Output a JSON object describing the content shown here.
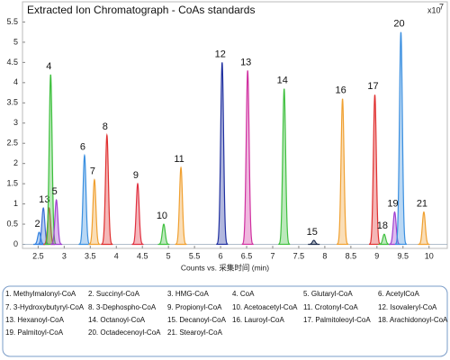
{
  "chart_data": {
    "type": "chromatogram",
    "title": "Extracted Ion Chromatograph - CoAs standards",
    "x_label": "Counts vs. 采集时间 (min)",
    "y_multiplier": {
      "base": "x10",
      "exponent": "7"
    },
    "xlim": [
      2.2,
      10.35
    ],
    "ylim": [
      -0.1,
      6
    ],
    "xticks": [
      2.5,
      3,
      3.5,
      4,
      4.5,
      5,
      5.5,
      6,
      6.5,
      7,
      7.5,
      8,
      8.5,
      9,
      9.5,
      10
    ],
    "yticks": [
      0,
      0.5,
      1,
      1.5,
      2,
      2.5,
      3,
      3.5,
      4,
      4.5,
      5,
      5.5
    ],
    "peaks": [
      {
        "label": "1",
        "legend": "1. Methylmalonyl-CoA",
        "rt": 2.6,
        "height": 0.9,
        "color": "#3a6fd8"
      },
      {
        "label": "2",
        "legend": "2. Succinyl-CoA",
        "rt": 2.52,
        "height": 0.3,
        "color": "#2f7fe0"
      },
      {
        "label": "3",
        "legend": "3. HMG-CoA",
        "rt": 2.71,
        "height": 0.9,
        "color": "#d04040"
      },
      {
        "label": "4",
        "legend": "4. CoA",
        "rt": 2.74,
        "height": 4.2,
        "color": "#3cbf3c"
      },
      {
        "label": "5",
        "legend": "5. Glutaryl-CoA",
        "rt": 2.85,
        "height": 1.1,
        "color": "#a040d0"
      },
      {
        "label": "6",
        "legend": "6. AcetylCoA",
        "rt": 3.39,
        "height": 2.2,
        "color": "#3a8fe0"
      },
      {
        "label": "7",
        "legend": "7. 3-Hydroxybutyryl-CoA",
        "rt": 3.58,
        "height": 1.6,
        "color": "#f0a030"
      },
      {
        "label": "8",
        "legend": "8. 3-Dephospho-CoA",
        "rt": 3.82,
        "height": 2.7,
        "color": "#e03030"
      },
      {
        "label": "9",
        "legend": "9. Propionyl-CoA",
        "rt": 4.41,
        "height": 1.5,
        "color": "#e03040"
      },
      {
        "label": "10",
        "legend": "10. Acetoacetyl-CoA",
        "rt": 4.91,
        "height": 0.5,
        "color": "#40c040"
      },
      {
        "label": "11",
        "legend": "11. Crotonyl-CoA",
        "rt": 5.24,
        "height": 1.9,
        "color": "#f0a030"
      },
      {
        "label": "12",
        "legend": "12. Isovaleryl-CoA",
        "rt": 6.03,
        "height": 4.5,
        "color": "#2030a0"
      },
      {
        "label": "13",
        "legend": "13. Hexanoyl-CoA",
        "rt": 6.52,
        "height": 4.3,
        "color": "#d030a0"
      },
      {
        "label": "14",
        "legend": "14. Octanoyl-CoA",
        "rt": 7.22,
        "height": 3.85,
        "color": "#40c040"
      },
      {
        "label": "15",
        "legend": "15. Decanoyl-CoA",
        "rt": 7.79,
        "height": 0.1,
        "color": "#203050"
      },
      {
        "label": "16",
        "legend": "16. Lauroyl-CoA",
        "rt": 8.34,
        "height": 3.6,
        "color": "#f0a030"
      },
      {
        "label": "17",
        "legend": "17. Palmitoleoyl-CoA",
        "rt": 8.96,
        "height": 3.7,
        "color": "#e03030"
      },
      {
        "label": "18",
        "legend": "18. Arachidonoyl-CoA",
        "rt": 9.14,
        "height": 0.25,
        "color": "#40c040"
      },
      {
        "label": "19",
        "legend": "19. Palmitoyl-CoA",
        "rt": 9.34,
        "height": 0.8,
        "color": "#a040d0"
      },
      {
        "label": "20",
        "legend": "20. Octadecenoyl-CoA",
        "rt": 9.46,
        "height": 5.25,
        "color": "#3a8fe0"
      },
      {
        "label": "21",
        "legend": "21. Stearoyl-CoA",
        "rt": 9.9,
        "height": 0.8,
        "color": "#f0a030"
      }
    ]
  }
}
